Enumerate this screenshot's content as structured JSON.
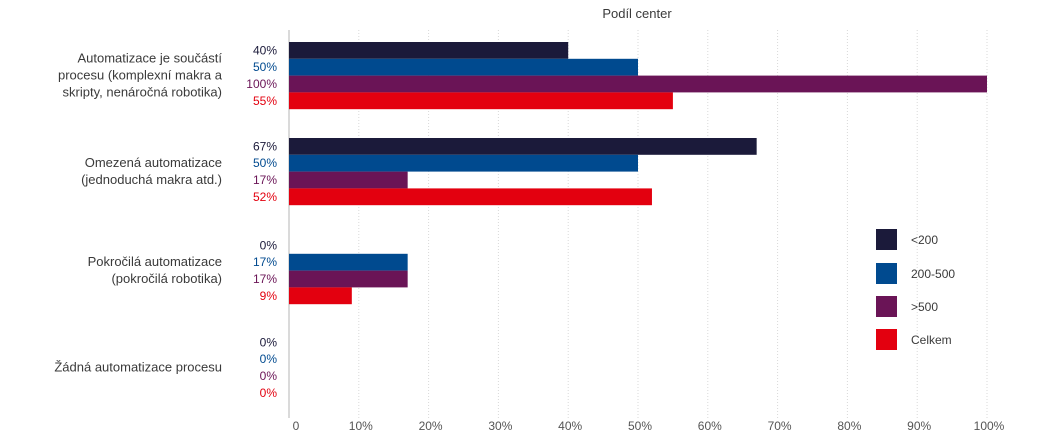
{
  "chart_data": {
    "type": "bar",
    "orientation": "horizontal",
    "title": "Podíl center",
    "categories": [
      [
        "Automatizace je součástí",
        "procesu (komplexní makra a",
        "skripty, nenáročná robotika)"
      ],
      [
        "Omezená automatizace",
        "(jednoduchá makra atd.)"
      ],
      [
        "Pokročilá automatizace",
        "(pokročilá robotika)"
      ],
      [
        "Žádná automatizace procesu"
      ]
    ],
    "series": [
      {
        "name": "<200",
        "color": "#1b1a3a",
        "values": [
          40,
          67,
          0,
          0
        ]
      },
      {
        "name": "200-500",
        "color": "#004a8f",
        "values": [
          50,
          50,
          17,
          0
        ]
      },
      {
        "name": ">500",
        "color": "#6a1456",
        "values": [
          100,
          17,
          17,
          0
        ]
      },
      {
        "name": "Celkem",
        "color": "#e3000f",
        "values": [
          55,
          52,
          9,
          0
        ]
      }
    ],
    "xlim": [
      0,
      100
    ],
    "xticks": [
      "0",
      "10%",
      "20%",
      "30%",
      "40%",
      "50%",
      "60%",
      "70%",
      "80%",
      "90%",
      "100%"
    ],
    "value_suffix": "%",
    "grid": true,
    "legend_position": "right"
  }
}
